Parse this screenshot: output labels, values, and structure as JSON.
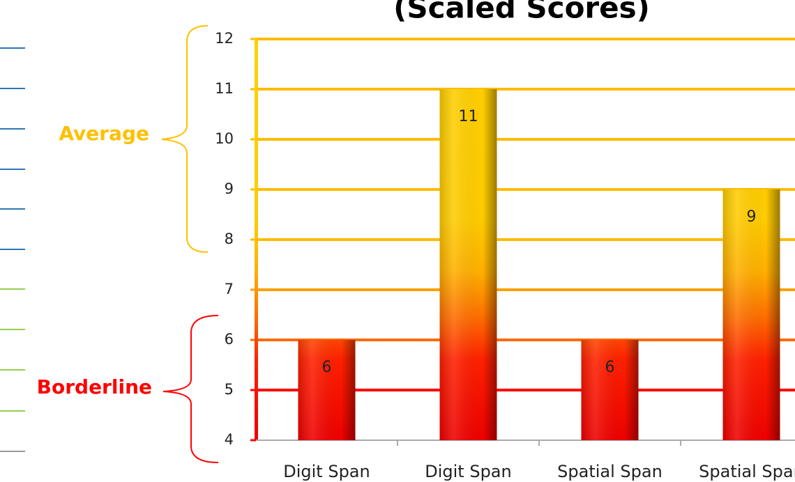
{
  "chart_data": {
    "type": "bar",
    "title": "(Scaled Scores)",
    "categories": [
      "Digit Span",
      "Digit Span",
      "Spatial Span",
      "Spatial Span"
    ],
    "values": [
      6,
      11,
      6,
      9
    ],
    "ylim": [
      4,
      12
    ],
    "yticks": [
      4,
      5,
      6,
      7,
      8,
      9,
      10,
      11,
      12
    ],
    "grid": true,
    "grid_colors": [
      "#ff0000",
      "#ff0000",
      "#ff6a00",
      "#ffa000",
      "#ffbb00",
      "#ffbb00",
      "#ffbb00",
      "#ffbb00",
      "#ffbb00"
    ],
    "annotations": [
      {
        "text": "Average",
        "color": "#ffc000"
      },
      {
        "text": "Borderline",
        "color": "#ff0000"
      }
    ]
  }
}
